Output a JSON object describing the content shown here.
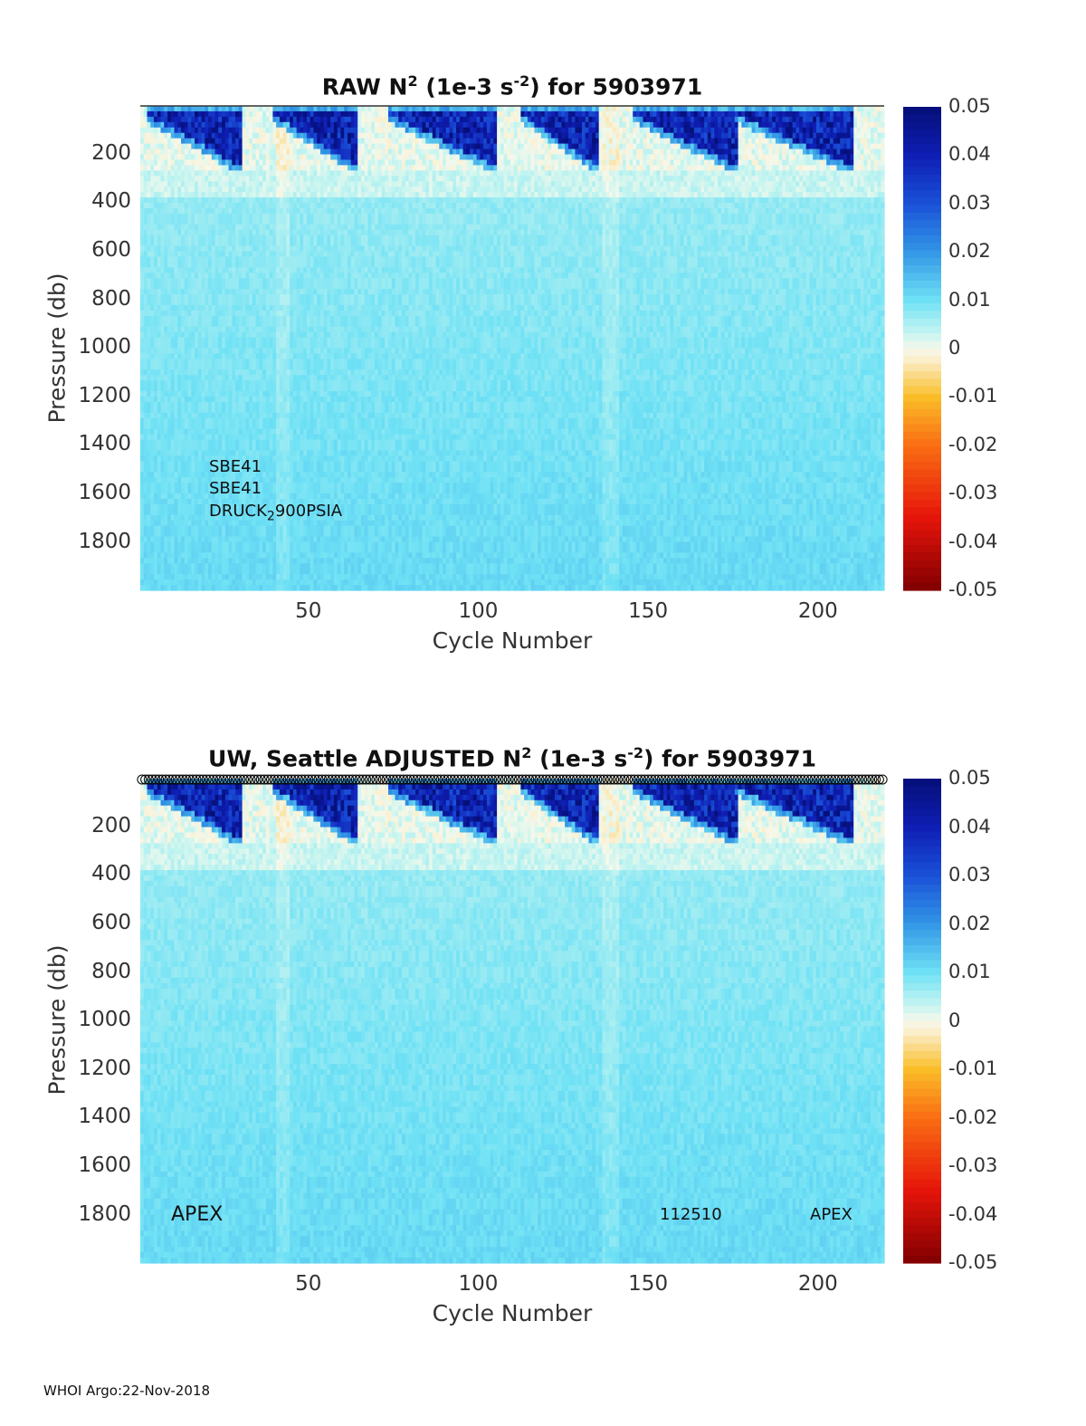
{
  "footer": "WHOI Argo:22-Nov-2018",
  "chart_data": [
    {
      "type": "heatmap",
      "title_parts": {
        "pre": "RAW N",
        "sup1": "2",
        "mid": " (1e-3 s",
        "sup2": "-2",
        "post": ") for 5903971"
      },
      "xlabel": "Cycle Number",
      "ylabel": "Pressure (db)",
      "xlim": [
        1,
        219
      ],
      "ylim": [
        1995,
        0
      ],
      "x_ticks": [
        "50",
        "100",
        "150",
        "200"
      ],
      "x_tick_values": [
        50,
        100,
        150,
        200
      ],
      "y_ticks": [
        "200",
        "400",
        "600",
        "800",
        "1000",
        "1200",
        "1400",
        "1600",
        "1800"
      ],
      "y_tick_values": [
        200,
        400,
        600,
        800,
        1000,
        1200,
        1400,
        1600,
        1800
      ],
      "colorbar": {
        "min": -0.05,
        "max": 0.05,
        "colormap": "jet-diverging",
        "ticks": [
          "0.05",
          "0.04",
          "0.03",
          "0.02",
          "0.01",
          "0",
          "-0.01",
          "-0.02",
          "-0.03",
          "-0.04",
          "-0.05"
        ]
      },
      "annotations": {
        "sensor1": "SBE41",
        "sensor2": "SBE41",
        "sensor3_pre": "DRUCK",
        "sensor3_sub": "2",
        "sensor3_post": "900PSIA"
      },
      "high_stratification_cycles": [
        [
          3,
          30
        ],
        [
          40,
          64
        ],
        [
          74,
          105
        ],
        [
          113,
          135
        ],
        [
          146,
          176
        ],
        [
          176,
          210
        ]
      ],
      "colors": {
        "high": "#0a1a8c",
        "mid": "#a8e6f2",
        "low": "#f7e9c6"
      }
    },
    {
      "type": "heatmap",
      "title_parts": {
        "pre": "UW, Seattle  ADJUSTED N",
        "sup1": "2",
        "mid": " (1e-3 s",
        "sup2": "-2",
        "post": ") for 5903971"
      },
      "xlabel": "Cycle Number",
      "ylabel": "Pressure (db)",
      "xlim": [
        1,
        219
      ],
      "ylim": [
        1995,
        0
      ],
      "x_ticks": [
        "50",
        "100",
        "150",
        "200"
      ],
      "x_tick_values": [
        50,
        100,
        150,
        200
      ],
      "y_ticks": [
        "200",
        "400",
        "600",
        "800",
        "1000",
        "1200",
        "1400",
        "1600",
        "1800"
      ],
      "y_tick_values": [
        200,
        400,
        600,
        800,
        1000,
        1200,
        1400,
        1600,
        1800
      ],
      "colorbar": {
        "min": -0.05,
        "max": 0.05,
        "colormap": "jet-diverging",
        "ticks": [
          "0.05",
          "0.04",
          "0.03",
          "0.02",
          "0.01",
          "0",
          "-0.01",
          "-0.02",
          "-0.03",
          "-0.04",
          "-0.05"
        ]
      },
      "annotations": {
        "left": "APEX",
        "mid": "112510",
        "right": "APEX"
      },
      "top_markers": "circles",
      "high_stratification_cycles": [
        [
          3,
          30
        ],
        [
          40,
          64
        ],
        [
          74,
          105
        ],
        [
          113,
          135
        ],
        [
          146,
          176
        ],
        [
          176,
          210
        ]
      ],
      "colors": {
        "high": "#0a1a8c",
        "mid": "#a8e6f2",
        "low": "#f7e9c6"
      }
    }
  ]
}
